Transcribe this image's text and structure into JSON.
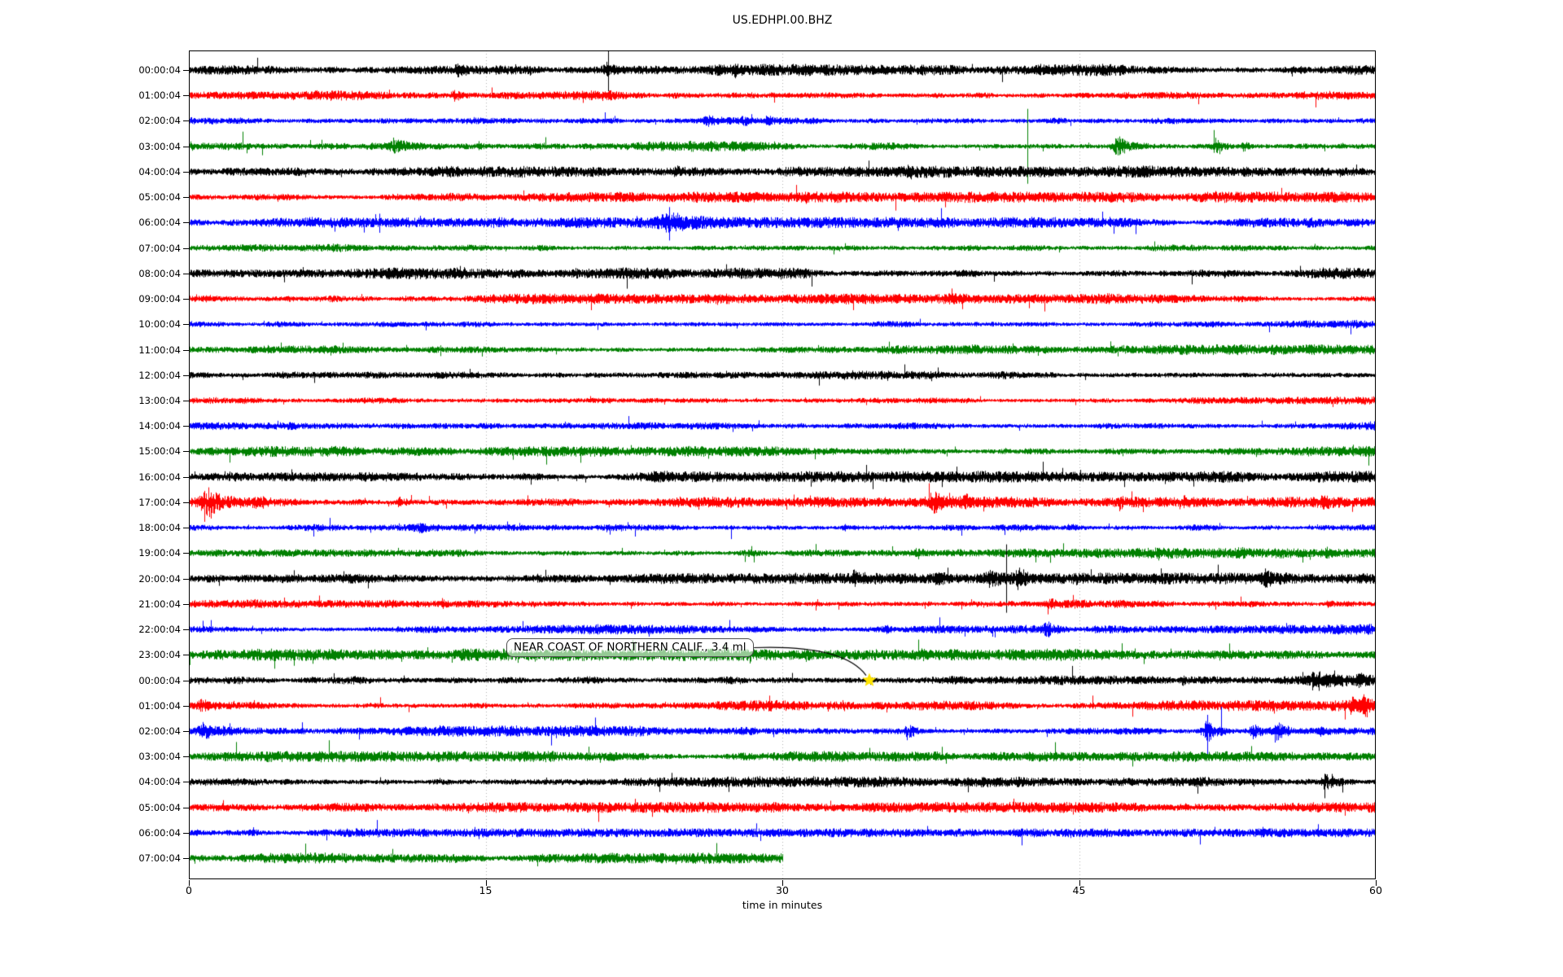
{
  "chart_data": {
    "type": "line",
    "subtype": "helicorder-dayplot-seismogram",
    "title": "US.EDHPI.00.BHZ",
    "xlabel": "time in minutes",
    "xlim": [
      0,
      60
    ],
    "x_ticks": [
      "0",
      "15",
      "30",
      "45",
      "60"
    ],
    "x_tick_minutes": [
      0,
      15,
      30,
      45,
      60
    ],
    "grid_minutes": [
      15,
      30,
      45
    ],
    "grid_style": "dotted",
    "legend": "none",
    "color_cycle": [
      "#000000",
      "#ff0000",
      "#0000ff",
      "#008000"
    ],
    "grid_color": "#b0b0b0",
    "annotation": {
      "label": "NEAR COAST OF NORTHERN CALIF., 3.4 ml",
      "marker": "yellow-star",
      "marker_color": "#ffe400",
      "row_index": 24,
      "row_label": "00:00:04",
      "minute": 34.4
    },
    "rows": [
      {
        "label": "00:00:04",
        "color": "#000000",
        "amp": 3.2,
        "end_minute": 60,
        "seed": 1,
        "events": [
          {
            "type": "burst",
            "t": 13.6,
            "dur": 0.8,
            "amp": 5
          },
          {
            "type": "burst",
            "t": 16.5,
            "dur": 0.5,
            "amp": 4
          },
          {
            "type": "burst",
            "t": 21.1,
            "dur": 0.9,
            "amp": 6
          },
          {
            "type": "spike",
            "t": 21.2,
            "up": 26,
            "down": 26
          },
          {
            "type": "burst",
            "t": 27.6,
            "dur": 0.5,
            "amp": 4
          }
        ]
      },
      {
        "label": "01:00:04",
        "color": "#ff0000",
        "amp": 2.9,
        "end_minute": 60,
        "seed": 2,
        "events": [
          {
            "type": "burst",
            "t": 13.4,
            "dur": 0.7,
            "amp": 6
          }
        ]
      },
      {
        "label": "02:00:04",
        "color": "#0000ff",
        "amp": 3.0,
        "end_minute": 60,
        "seed": 3,
        "events": [
          {
            "type": "burst",
            "t": 26.2,
            "dur": 1.0,
            "amp": 7
          },
          {
            "type": "burst",
            "t": 28.0,
            "dur": 0.5,
            "amp": 5
          },
          {
            "type": "burst",
            "t": 29.2,
            "dur": 0.4,
            "amp": 4
          }
        ]
      },
      {
        "label": "03:00:04",
        "color": "#008000",
        "amp": 3.0,
        "end_minute": 60,
        "seed": 4,
        "events": [
          {
            "type": "spike",
            "t": 2.7,
            "up": 18,
            "down": 4
          },
          {
            "type": "spike",
            "t": 3.7,
            "up": 3,
            "down": 11
          },
          {
            "type": "spike",
            "t": 6.7,
            "up": 8,
            "down": 4
          },
          {
            "type": "burst",
            "t": 10.3,
            "dur": 1.4,
            "amp": 8
          },
          {
            "type": "burst",
            "t": 14.6,
            "dur": 0.5,
            "amp": 4
          },
          {
            "type": "spike",
            "t": 29.6,
            "up": 6,
            "down": 3
          },
          {
            "type": "spike",
            "t": 42.4,
            "up": 46,
            "down": 46
          },
          {
            "type": "burst",
            "t": 46.9,
            "dur": 1.1,
            "amp": 13
          },
          {
            "type": "spike",
            "t": 51.8,
            "up": 20,
            "down": 8
          },
          {
            "type": "burst",
            "t": 51.9,
            "dur": 0.8,
            "amp": 8
          },
          {
            "type": "burst",
            "t": 53.3,
            "dur": 0.5,
            "amp": 6
          }
        ]
      },
      {
        "label": "04:00:04",
        "color": "#000000",
        "amp": 3.2,
        "end_minute": 60,
        "seed": 5,
        "events": [
          {
            "type": "burst",
            "t": 24.6,
            "dur": 0.6,
            "amp": 4
          },
          {
            "type": "burst",
            "t": 36.4,
            "dur": 0.4,
            "amp": 4
          },
          {
            "type": "spike",
            "t": 50.7,
            "up": 6,
            "down": 3
          }
        ]
      },
      {
        "label": "05:00:04",
        "color": "#ff0000",
        "amp": 3.0,
        "end_minute": 60,
        "seed": 6,
        "events": []
      },
      {
        "label": "06:00:04",
        "color": "#0000ff",
        "amp": 3.0,
        "end_minute": 60,
        "seed": 7,
        "events": [
          {
            "type": "burst",
            "t": 24.1,
            "dur": 2.2,
            "amp": 9
          },
          {
            "type": "spike",
            "t": 24.3,
            "up": 19,
            "down": 22
          },
          {
            "type": "spike",
            "t": 24.7,
            "up": 12,
            "down": 6
          }
        ]
      },
      {
        "label": "07:00:04",
        "color": "#008000",
        "amp": 2.9,
        "end_minute": 60,
        "seed": 8,
        "events": []
      },
      {
        "label": "08:00:04",
        "color": "#000000",
        "amp": 3.2,
        "end_minute": 60,
        "seed": 9,
        "events": []
      },
      {
        "label": "09:00:04",
        "color": "#ff0000",
        "amp": 2.9,
        "end_minute": 60,
        "seed": 10,
        "events": []
      },
      {
        "label": "10:00:04",
        "color": "#0000ff",
        "amp": 2.7,
        "end_minute": 60,
        "seed": 11,
        "events": []
      },
      {
        "label": "11:00:04",
        "color": "#008000",
        "amp": 2.8,
        "end_minute": 60,
        "seed": 12,
        "events": []
      },
      {
        "label": "12:00:04",
        "color": "#000000",
        "amp": 3.1,
        "end_minute": 60,
        "seed": 13,
        "events": []
      },
      {
        "label": "13:00:04",
        "color": "#ff0000",
        "amp": 2.6,
        "end_minute": 60,
        "seed": 14,
        "events": []
      },
      {
        "label": "14:00:04",
        "color": "#0000ff",
        "amp": 2.8,
        "end_minute": 60,
        "seed": 15,
        "events": []
      },
      {
        "label": "15:00:04",
        "color": "#008000",
        "amp": 2.9,
        "end_minute": 60,
        "seed": 16,
        "events": []
      },
      {
        "label": "16:00:04",
        "color": "#000000",
        "amp": 3.1,
        "end_minute": 60,
        "seed": 17,
        "events": []
      },
      {
        "label": "17:00:04",
        "color": "#ff0000",
        "amp": 3.0,
        "end_minute": 60,
        "seed": 18,
        "events": [
          {
            "type": "burst",
            "t": 0.9,
            "dur": 1.6,
            "amp": 18
          },
          {
            "type": "spike",
            "t": 0.8,
            "up": 14,
            "down": 24
          },
          {
            "type": "spike",
            "t": 1.1,
            "up": 12,
            "down": 20
          },
          {
            "type": "burst",
            "t": 3.5,
            "dur": 3.5,
            "amp": 5
          },
          {
            "type": "burst",
            "t": 10.6,
            "dur": 0.5,
            "amp": 6
          },
          {
            "type": "burst",
            "t": 24.6,
            "dur": 0.4,
            "amp": 4
          },
          {
            "type": "burst",
            "t": 31.8,
            "dur": 0.5,
            "amp": 5
          },
          {
            "type": "burst",
            "t": 37.6,
            "dur": 1.0,
            "amp": 10
          },
          {
            "type": "burst",
            "t": 39.2,
            "dur": 0.5,
            "amp": 6
          },
          {
            "type": "burst",
            "t": 47.1,
            "dur": 0.4,
            "amp": 4
          },
          {
            "type": "burst",
            "t": 50.3,
            "dur": 0.4,
            "amp": 4
          },
          {
            "type": "burst",
            "t": 57.3,
            "dur": 0.5,
            "amp": 5
          }
        ]
      },
      {
        "label": "18:00:04",
        "color": "#0000ff",
        "amp": 2.8,
        "end_minute": 60,
        "seed": 19,
        "events": [
          {
            "type": "spike",
            "t": 7.1,
            "up": 12,
            "down": 4
          },
          {
            "type": "burst",
            "t": 11.7,
            "dur": 0.4,
            "amp": 5
          },
          {
            "type": "spike",
            "t": 27.4,
            "up": 3,
            "down": 14
          },
          {
            "type": "burst",
            "t": 33.1,
            "dur": 0.4,
            "amp": 4
          },
          {
            "type": "burst",
            "t": 44.5,
            "dur": 0.5,
            "amp": 5
          }
        ]
      },
      {
        "label": "19:00:04",
        "color": "#008000",
        "amp": 3.0,
        "end_minute": 60,
        "seed": 20,
        "events": [
          {
            "type": "burst",
            "t": 36.8,
            "dur": 0.5,
            "amp": 5
          },
          {
            "type": "spike",
            "t": 49.0,
            "up": 3,
            "down": 9
          },
          {
            "type": "burst",
            "t": 53.0,
            "dur": 0.4,
            "amp": 4
          },
          {
            "type": "burst",
            "t": 57.5,
            "dur": 0.4,
            "amp": 4
          }
        ]
      },
      {
        "label": "20:00:04",
        "color": "#000000",
        "amp": 3.1,
        "end_minute": 60,
        "seed": 21,
        "events": [
          {
            "type": "spike",
            "t": 7.8,
            "up": 9,
            "down": 3
          },
          {
            "type": "burst",
            "t": 33.6,
            "dur": 0.5,
            "amp": 6
          },
          {
            "type": "burst",
            "t": 37.8,
            "dur": 0.8,
            "amp": 6
          },
          {
            "type": "burst",
            "t": 40.4,
            "dur": 0.8,
            "amp": 9
          },
          {
            "type": "spike",
            "t": 41.3,
            "up": 42,
            "down": 42
          },
          {
            "type": "burst",
            "t": 41.9,
            "dur": 0.6,
            "amp": 10
          },
          {
            "type": "burst",
            "t": 44.8,
            "dur": 0.4,
            "amp": 5
          },
          {
            "type": "burst",
            "t": 54.4,
            "dur": 0.7,
            "amp": 8
          }
        ]
      },
      {
        "label": "21:00:04",
        "color": "#ff0000",
        "amp": 2.9,
        "end_minute": 60,
        "seed": 22,
        "events": [
          {
            "type": "burst",
            "t": 12.8,
            "dur": 0.4,
            "amp": 4
          },
          {
            "type": "burst",
            "t": 43.5,
            "dur": 0.5,
            "amp": 5
          },
          {
            "type": "spike",
            "t": 51.9,
            "up": 3,
            "down": 7
          },
          {
            "type": "burst",
            "t": 57.6,
            "dur": 0.4,
            "amp": 4
          }
        ]
      },
      {
        "label": "22:00:04",
        "color": "#0000ff",
        "amp": 2.9,
        "end_minute": 60,
        "seed": 23,
        "events": [
          {
            "type": "burst",
            "t": 35.2,
            "dur": 0.4,
            "amp": 4
          },
          {
            "type": "burst",
            "t": 43.3,
            "dur": 0.6,
            "amp": 11
          }
        ]
      },
      {
        "label": "23:00:04",
        "color": "#008000",
        "amp": 3.3,
        "end_minute": 60,
        "seed": 24,
        "events": [
          {
            "type": "burst",
            "t": 13.8,
            "dur": 0.4,
            "amp": 4
          },
          {
            "type": "burst",
            "t": 31.2,
            "dur": 0.5,
            "amp": 4
          },
          {
            "type": "burst",
            "t": 37.0,
            "dur": 0.5,
            "amp": 4
          }
        ]
      },
      {
        "label": "00:00:04",
        "color": "#000000",
        "amp": 3.1,
        "end_minute": 60,
        "seed": 25,
        "events": [
          {
            "type": "burst",
            "t": 34.4,
            "dur": 0.4,
            "amp": 5
          },
          {
            "type": "burst",
            "t": 50.2,
            "dur": 0.4,
            "amp": 4
          },
          {
            "type": "burst",
            "t": 56.8,
            "dur": 1.4,
            "amp": 9
          },
          {
            "type": "spike",
            "t": 57.1,
            "up": 10,
            "down": 13
          },
          {
            "type": "spike",
            "t": 57.9,
            "up": 12,
            "down": 8
          },
          {
            "type": "burst",
            "t": 59.1,
            "dur": 0.4,
            "amp": 5
          }
        ]
      },
      {
        "label": "01:00:04",
        "color": "#ff0000",
        "amp": 3.0,
        "end_minute": 60,
        "seed": 26,
        "events": [
          {
            "type": "burst",
            "t": 0.6,
            "dur": 0.9,
            "amp": 7
          },
          {
            "type": "burst",
            "t": 58.8,
            "dur": 0.5,
            "amp": 12
          },
          {
            "type": "burst",
            "t": 59.4,
            "dur": 0.5,
            "amp": 14
          },
          {
            "type": "spike",
            "t": 59.4,
            "up": 14,
            "down": 10
          }
        ]
      },
      {
        "label": "02:00:04",
        "color": "#0000ff",
        "amp": 3.0,
        "end_minute": 60,
        "seed": 27,
        "events": [
          {
            "type": "burst",
            "t": 0.7,
            "dur": 1.2,
            "amp": 9
          },
          {
            "type": "burst",
            "t": 36.3,
            "dur": 0.8,
            "amp": 9
          },
          {
            "type": "burst",
            "t": 51.4,
            "dur": 0.9,
            "amp": 15
          },
          {
            "type": "spike",
            "t": 51.5,
            "up": 20,
            "down": 30
          },
          {
            "type": "spike",
            "t": 52.2,
            "up": 30,
            "down": 6
          },
          {
            "type": "burst",
            "t": 53.8,
            "dur": 0.6,
            "amp": 10
          },
          {
            "type": "burst",
            "t": 55.0,
            "dur": 0.7,
            "amp": 11
          },
          {
            "type": "burst",
            "t": 57.2,
            "dur": 0.4,
            "amp": 5
          }
        ]
      },
      {
        "label": "03:00:04",
        "color": "#008000",
        "amp": 3.0,
        "end_minute": 60,
        "seed": 28,
        "events": []
      },
      {
        "label": "04:00:04",
        "color": "#000000",
        "amp": 3.1,
        "end_minute": 60,
        "seed": 29,
        "events": [
          {
            "type": "burst",
            "t": 57.4,
            "dur": 0.9,
            "amp": 10
          },
          {
            "type": "spike",
            "t": 57.4,
            "up": 10,
            "down": 20
          },
          {
            "type": "spike",
            "t": 58.3,
            "up": 5,
            "down": 13
          }
        ]
      },
      {
        "label": "05:00:04",
        "color": "#ff0000",
        "amp": 2.9,
        "end_minute": 60,
        "seed": 30,
        "events": []
      },
      {
        "label": "06:00:04",
        "color": "#0000ff",
        "amp": 2.4,
        "end_minute": 60,
        "seed": 31,
        "events": []
      },
      {
        "label": "07:00:04",
        "color": "#008000",
        "amp": 3.0,
        "end_minute": 30,
        "seed": 32,
        "events": []
      }
    ]
  }
}
